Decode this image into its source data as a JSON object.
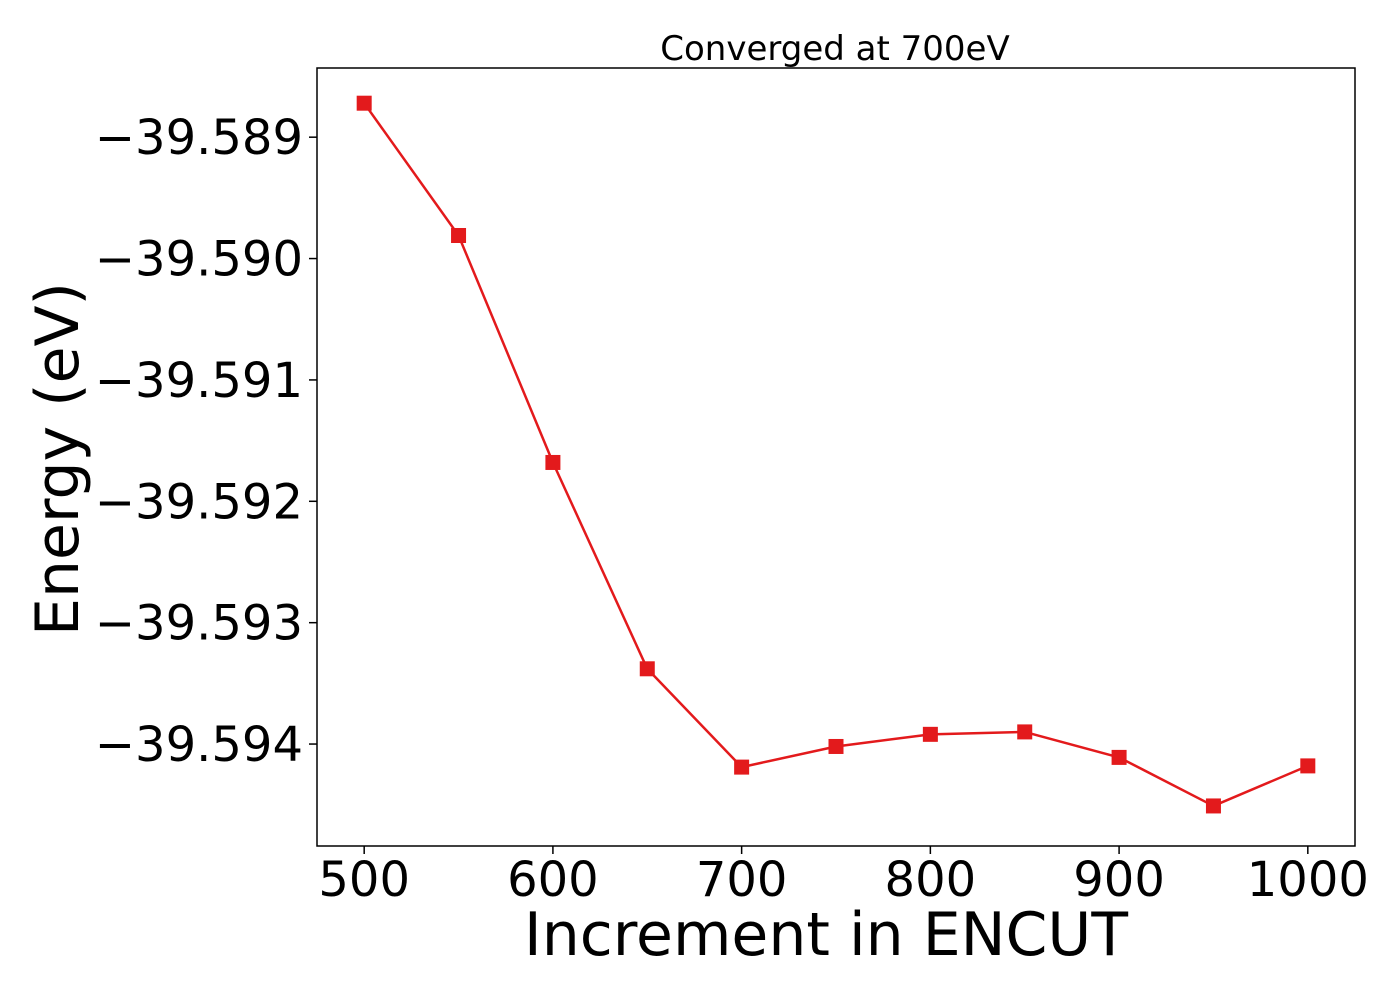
{
  "chart_data": {
    "type": "line",
    "title": "Converged at 700eV",
    "xlabel": "Increment in ENCUT",
    "ylabel": "Energy (eV)",
    "xlim": [
      475,
      1025
    ],
    "ylim": [
      -39.59484,
      -39.58843
    ],
    "xticks": [
      500,
      600,
      700,
      800,
      900,
      1000
    ],
    "yticks": [
      -39.589,
      -39.59,
      -39.591,
      -39.592,
      -39.593,
      -39.594
    ],
    "xtick_labels": [
      "500",
      "600",
      "700",
      "800",
      "900",
      "1000"
    ],
    "ytick_labels": [
      "−39.589",
      "−39.590",
      "−39.591",
      "−39.592",
      "−39.593",
      "−39.594"
    ],
    "grid": false,
    "series": [
      {
        "color": "#e31a1c",
        "marker": "square",
        "x": [
          500,
          550,
          600,
          650,
          700,
          750,
          800,
          850,
          900,
          950,
          1000
        ],
        "y": [
          -39.58872,
          -39.58981,
          -39.59168,
          -39.59338,
          -39.59419,
          -39.59402,
          -39.59392,
          -39.5939,
          -39.59411,
          -39.59451,
          -39.59418
        ]
      }
    ]
  }
}
